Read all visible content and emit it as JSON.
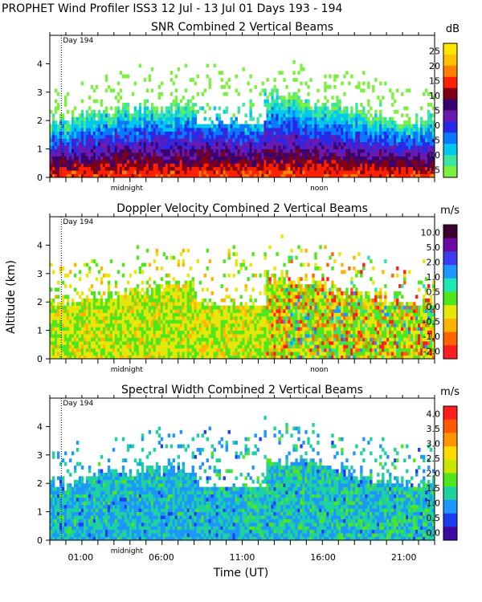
{
  "figure": {
    "title": "PROPHET Wind Profiler ISS3  12 Jul - 13 Jul 01 Days 193 - 194",
    "ylabel": "Altitude (km)",
    "xlabel": "Time (UT)",
    "day_marker": "Day 194",
    "midnight_label": "midnight",
    "noon_label": "noon"
  },
  "chart_data": [
    {
      "type": "heatmap",
      "title": "SNR Combined 2 Vertical Beams",
      "unit": "dB",
      "colorbar_ticks": [
        "25",
        "20",
        "15",
        "10",
        "5",
        "0",
        "-5",
        "-10",
        "-15"
      ],
      "colorbar_colors": [
        "#ffe600",
        "#ffc000",
        "#ff7f00",
        "#ff2000",
        "#800018",
        "#3a006e",
        "#6a1ab0",
        "#2828e8",
        "#0a78ff",
        "#00c8f0",
        "#3ce6a0",
        "#7cf040"
      ],
      "ylim": [
        0,
        5
      ],
      "yticks": [
        0,
        1,
        2,
        3,
        4
      ],
      "xlabel": "",
      "ylabel": "",
      "xticks": [],
      "show_xtick_labels": false
    },
    {
      "type": "heatmap",
      "title": "Doppler Velocity Combined 2 Vertical Beams",
      "unit": "m/s",
      "colorbar_ticks": [
        "10.0",
        "5.0",
        "2.0",
        "1.0",
        "0.5",
        "0.0",
        "-0.5",
        "-1.0",
        "-2.0"
      ],
      "colorbar_colors": [
        "#3a0030",
        "#6a0aa0",
        "#3c3cf0",
        "#1e96ff",
        "#1ee6b4",
        "#50e61e",
        "#e6e60a",
        "#ffb400",
        "#ff6400",
        "#ff1e1e"
      ],
      "ylim": [
        0,
        5
      ],
      "yticks": [
        0,
        1,
        2,
        3,
        4
      ],
      "xlabel": "",
      "ylabel": "Altitude (km)",
      "show_xtick_labels": false
    },
    {
      "type": "heatmap",
      "title": "Spectral Width Combined 2 Vertical Beams",
      "unit": "m/s",
      "colorbar_ticks": [
        "4.0",
        "3.5",
        "3.0",
        "2.5",
        "2.0",
        "1.5",
        "1.0",
        "0.5",
        "0.0"
      ],
      "colorbar_colors": [
        "#ff1e1e",
        "#ff5a00",
        "#ff9600",
        "#ffdc00",
        "#c8e600",
        "#50e61e",
        "#1ed2a0",
        "#1e96ff",
        "#1e3cf0",
        "#3c0aa0"
      ],
      "ylim": [
        0,
        5
      ],
      "yticks": [
        0,
        1,
        2,
        3,
        4
      ],
      "xlabel": "Time (UT)",
      "ylabel": "",
      "xticks": [
        "01:00",
        "06:00",
        "11:00",
        "16:00",
        "21:00"
      ],
      "show_xtick_labels": true
    }
  ]
}
